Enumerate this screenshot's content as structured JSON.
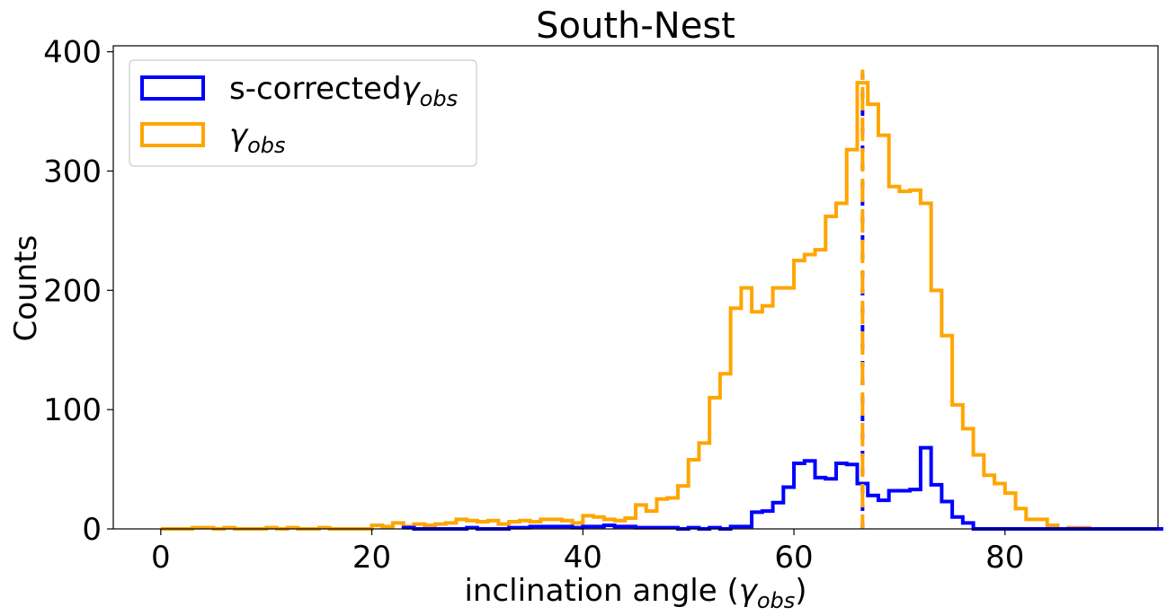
{
  "chart_data": {
    "type": "histogram",
    "title": "South-Nest",
    "xlabel": "inclination angle (",
    "xlabel_symbol": "γ",
    "xlabel_sub": "obs",
    "xlabel_close": ")",
    "ylabel": "Counts",
    "xlim": [
      -4.5,
      94.5
    ],
    "ylim": [
      0,
      405
    ],
    "xticks": [
      0,
      20,
      40,
      60,
      80
    ],
    "yticks": [
      0,
      100,
      200,
      300,
      400
    ],
    "grid": false,
    "legend_position": "top-left",
    "bin_width": 1,
    "series": [
      {
        "name": "s-corrected",
        "name_symbol": "γ",
        "name_sub": "obs",
        "color": "#0000ff",
        "style": "step",
        "bin_start": 23,
        "values": [
          1,
          0,
          0,
          0,
          0,
          0,
          1,
          0,
          0,
          0,
          1,
          1,
          2,
          2,
          2,
          2,
          1,
          2,
          2,
          3,
          2,
          2,
          1,
          1,
          1,
          1,
          0,
          1,
          0,
          1,
          0,
          2,
          2,
          14,
          15,
          22,
          35,
          55,
          57,
          43,
          42,
          55,
          54,
          38,
          28,
          24,
          32,
          32,
          33,
          68,
          37,
          23,
          10,
          5,
          0,
          0,
          0,
          0,
          0,
          0,
          0,
          0,
          0,
          0,
          0,
          0,
          0,
          0,
          0,
          0,
          0,
          0
        ]
      },
      {
        "name": "",
        "name_symbol": "γ",
        "name_sub": "obs",
        "color": "#ffa500",
        "style": "step",
        "bin_start": 0,
        "values": [
          0,
          0,
          0,
          1,
          1,
          0,
          1,
          0,
          0,
          0,
          1,
          0,
          1,
          0,
          0,
          1,
          0,
          0,
          0,
          0,
          3,
          2,
          5,
          2,
          4,
          3,
          4,
          5,
          8,
          7,
          6,
          7,
          4,
          6,
          7,
          6,
          8,
          8,
          7,
          5,
          11,
          10,
          8,
          7,
          9,
          20,
          15,
          25,
          26,
          36,
          58,
          72,
          110,
          130,
          185,
          202,
          182,
          187,
          202,
          202,
          225,
          230,
          234,
          262,
          273,
          318,
          374,
          356,
          330,
          287,
          283,
          284,
          273,
          200,
          162,
          104,
          84,
          62,
          45,
          38,
          30,
          17,
          8,
          8,
          3,
          0,
          1,
          1,
          0,
          0
        ]
      }
    ],
    "vlines": [
      {
        "x": 66.5,
        "color": "#0000ff",
        "style": "dashed"
      },
      {
        "x": 66.5,
        "color": "#ffa500",
        "style": "dashed"
      }
    ]
  }
}
